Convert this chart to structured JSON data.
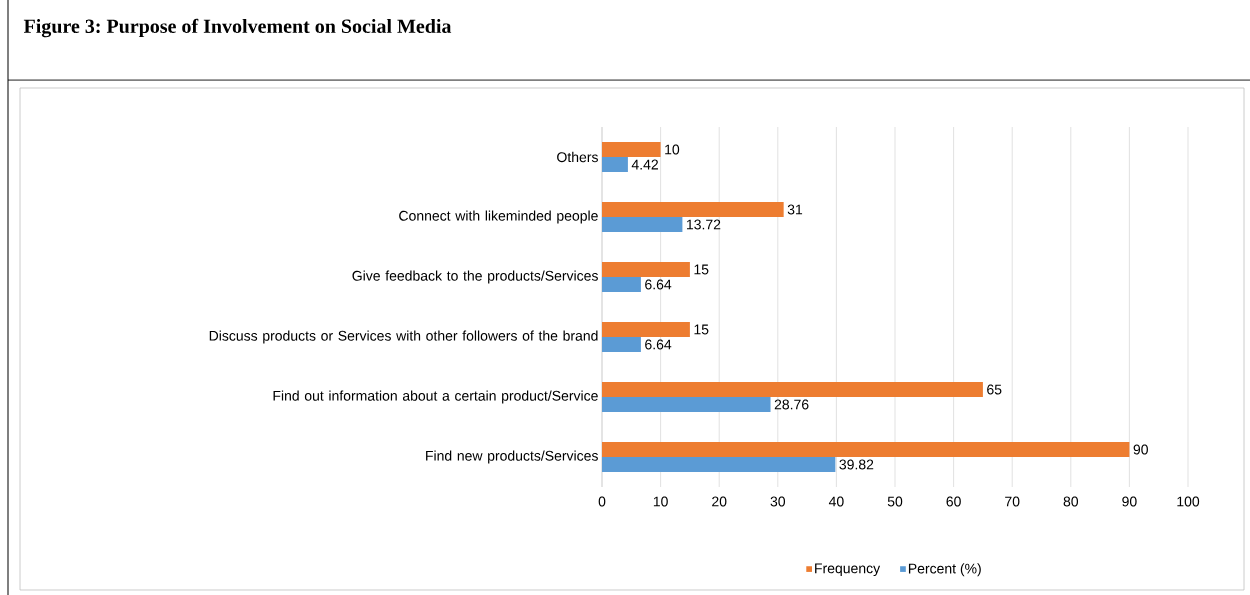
{
  "chart_data": {
    "type": "bar",
    "orientation": "horizontal",
    "title": "Figure 3: Purpose of Involvement on Social Media",
    "categories": [
      "Others",
      "Connect with likeminded people",
      "Give feedback to the products/Services",
      "Discuss products or Services with other followers of the brand",
      "Find out information about a certain product/Service",
      "Find new products/Services"
    ],
    "series": [
      {
        "name": "Frequency",
        "color": "#ed7d31",
        "values": [
          10,
          31,
          15,
          15,
          65,
          90
        ]
      },
      {
        "name": "Percent (%)",
        "color": "#5b9bd5",
        "values": [
          4.42,
          13.72,
          6.64,
          6.64,
          28.76,
          39.82
        ]
      }
    ],
    "xlim": [
      0,
      100
    ],
    "xticks": [
      0,
      10,
      20,
      30,
      40,
      50,
      60,
      70,
      80,
      90,
      100
    ],
    "grid": "x",
    "legend": "bottom",
    "data_labels": true
  }
}
